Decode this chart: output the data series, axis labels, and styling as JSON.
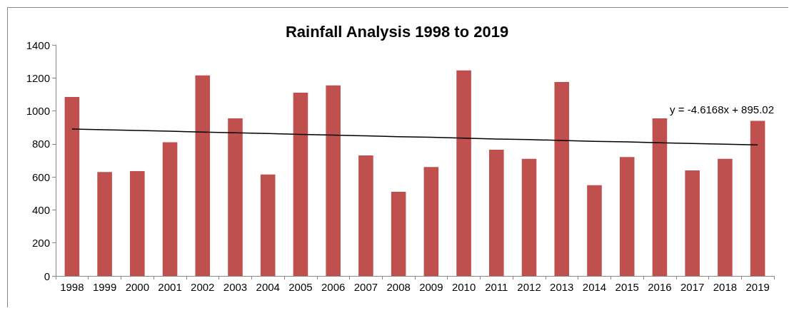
{
  "chart_data": {
    "type": "bar",
    "title": "Rainfall Analysis 1998 to 2019",
    "categories": [
      "1998",
      "1999",
      "2000",
      "2001",
      "2002",
      "2003",
      "2004",
      "2005",
      "2006",
      "2007",
      "2008",
      "2009",
      "2010",
      "2011",
      "2012",
      "2013",
      "2014",
      "2015",
      "2016",
      "2017",
      "2018",
      "2019"
    ],
    "series": [
      {
        "color": "#c0504d",
        "values": [
          1085,
          630,
          635,
          810,
          1215,
          955,
          615,
          1110,
          1155,
          730,
          510,
          660,
          1245,
          765,
          710,
          1175,
          550,
          720,
          955,
          640,
          710,
          940
        ]
      },
      {
        "type": "line",
        "color": "#000000",
        "values": [
          890,
          886,
          881,
          877,
          872,
          867,
          863,
          858,
          853,
          849,
          844,
          840,
          835,
          830,
          826,
          821,
          816,
          812,
          807,
          803,
          798,
          794
        ]
      }
    ],
    "ylim": [
      0,
      1400
    ],
    "yticks": [
      0,
      200,
      400,
      600,
      800,
      1000,
      1200,
      1400
    ],
    "grid": false,
    "marker": "none",
    "annotations": [
      "y = -4.6168x + 895.02"
    ]
  }
}
